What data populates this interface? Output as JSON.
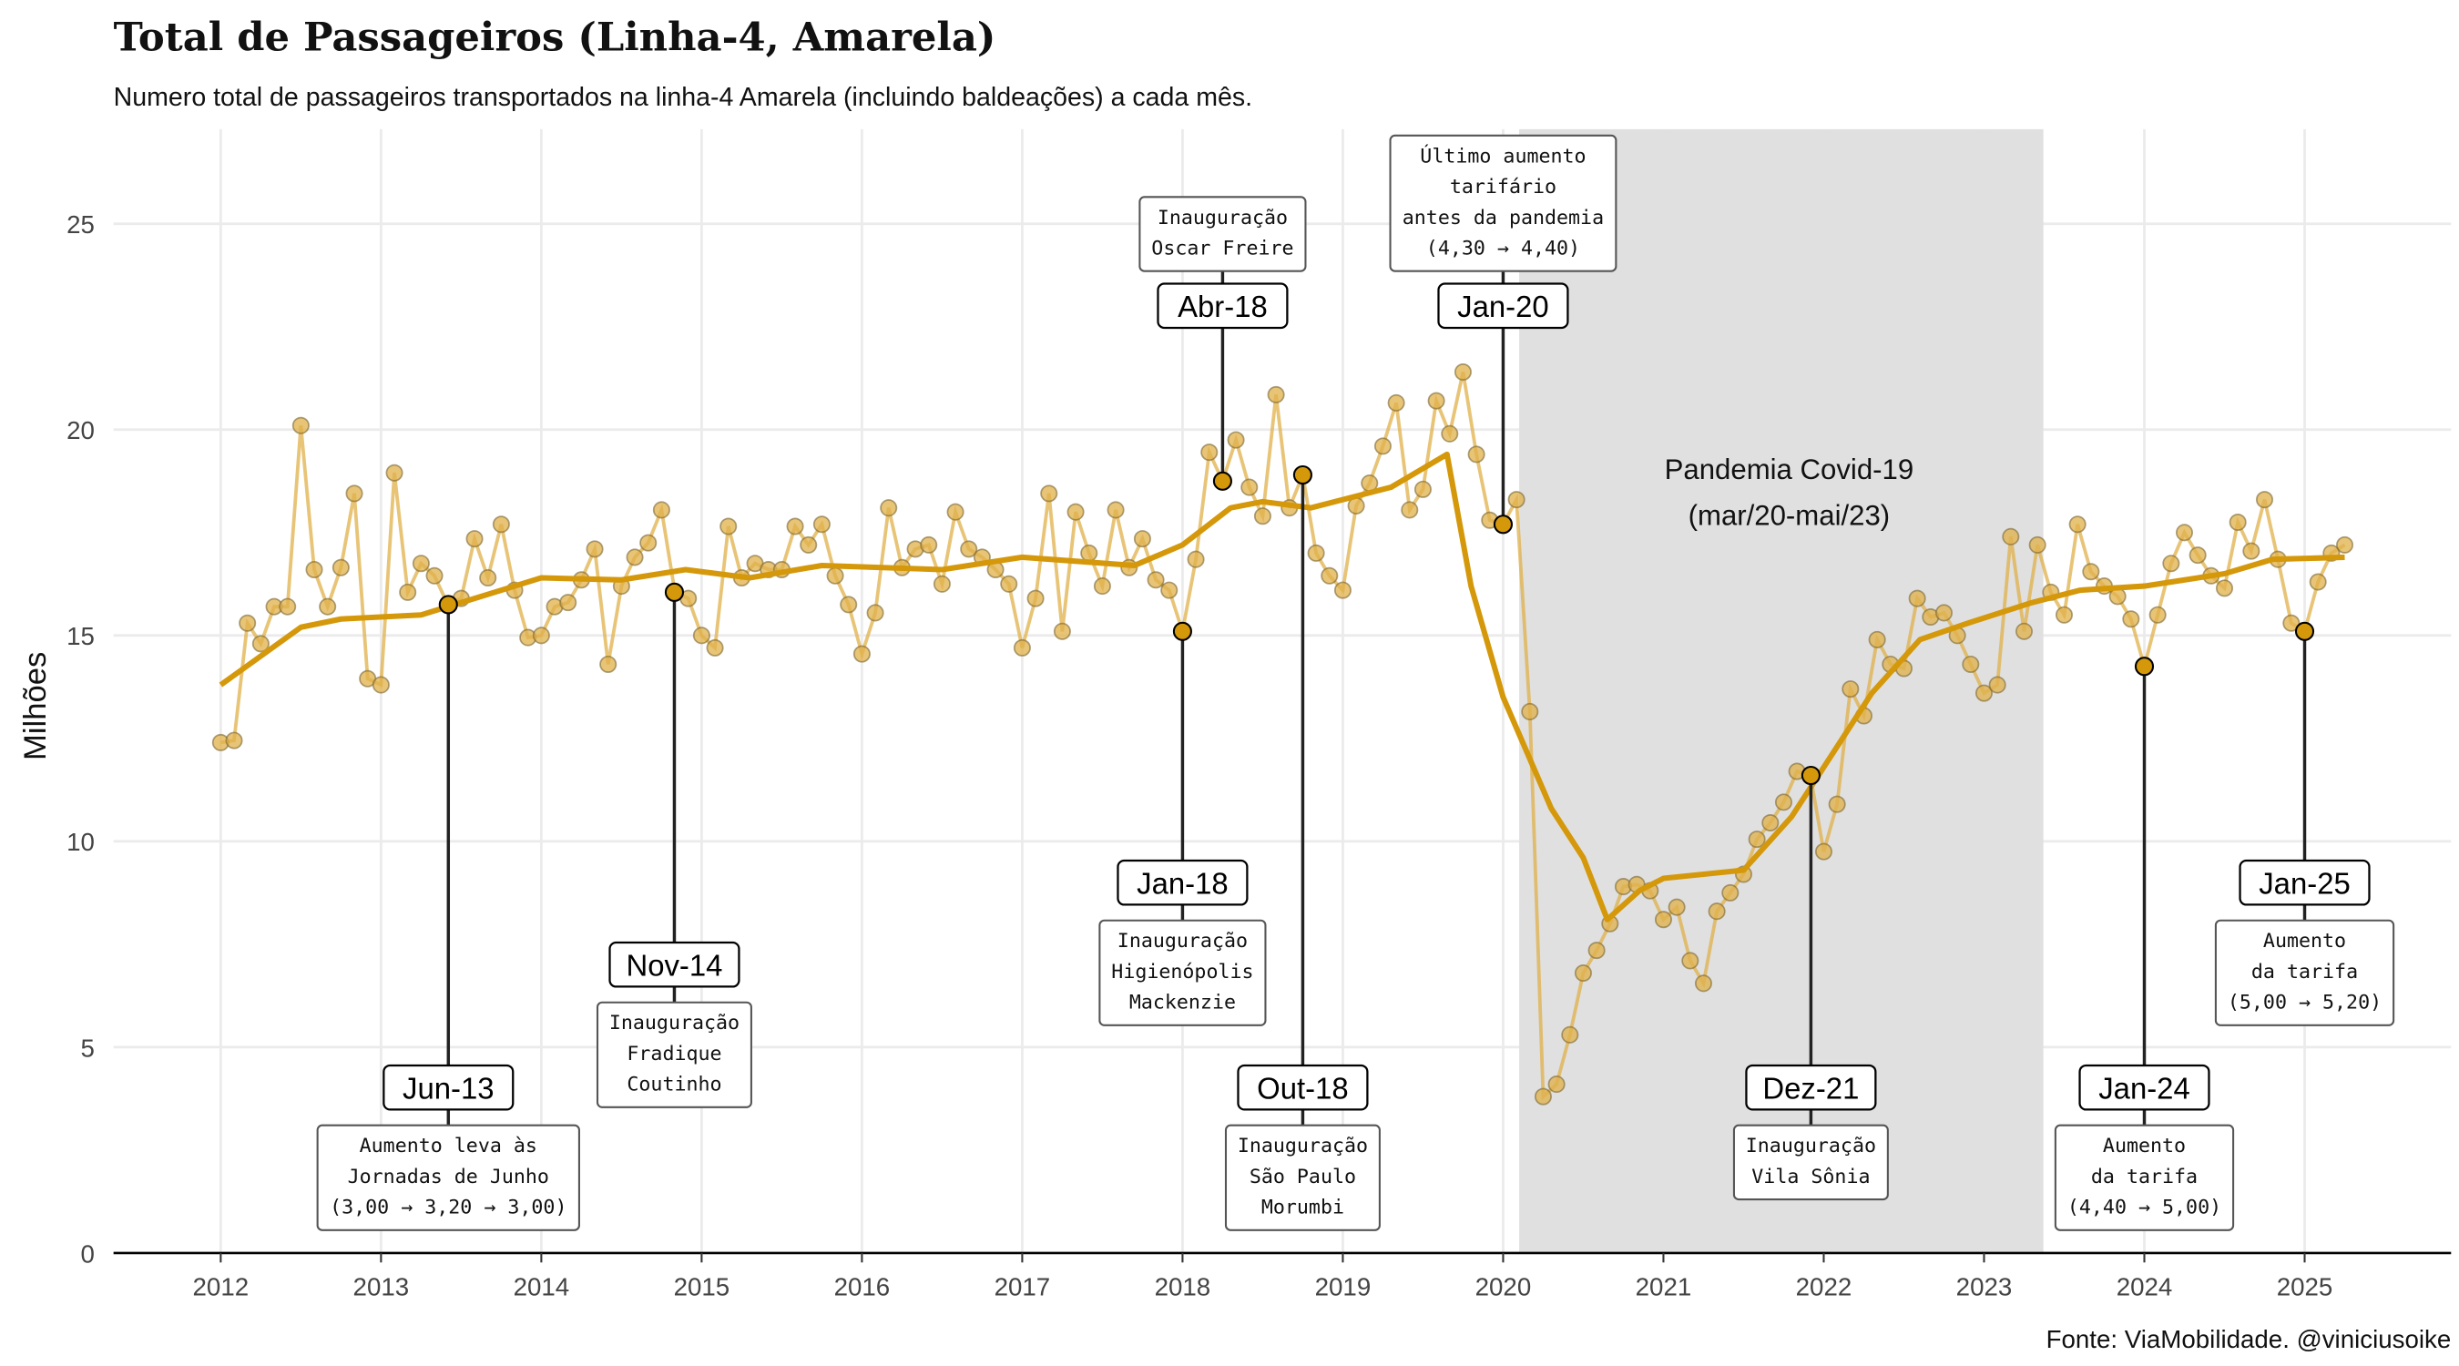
{
  "title": "Total de Passageiros (Linha-4, Amarela)",
  "subtitle": "Numero total de passageiros transportados na linha-4 Amarela (incluindo baldeações) a cada mês.",
  "caption": "Fonte: ViaMobilidade. @viniciusoike",
  "colors": {
    "point": "#E0B04A",
    "line": "#D4980A",
    "highlight": "#D4980A",
    "shade": "#E0E0E0",
    "grid": "#EBEBEB"
  },
  "chart_data": {
    "type": "line",
    "title": "Total de Passageiros (Linha-4, Amarela)",
    "xlabel": "",
    "ylabel": "Milhões",
    "xlim": [
      2011.35,
      2025.9
    ],
    "ylim": [
      0,
      27
    ],
    "x_ticks": [
      2012,
      2013,
      2014,
      2015,
      2016,
      2017,
      2018,
      2019,
      2020,
      2021,
      2022,
      2023,
      2024,
      2025
    ],
    "y_ticks": [
      0,
      5,
      10,
      15,
      20,
      25
    ],
    "grid": true,
    "start": "2012-01",
    "monthly_values": [
      12.4,
      12.45,
      15.3,
      14.8,
      15.7,
      15.7,
      20.1,
      16.6,
      15.7,
      16.65,
      18.45,
      13.95,
      13.8,
      18.95,
      16.05,
      16.75,
      16.45,
      15.75,
      15.9,
      17.35,
      16.4,
      17.7,
      16.1,
      14.95,
      15.0,
      15.7,
      15.8,
      16.35,
      17.1,
      14.3,
      16.2,
      16.9,
      17.25,
      18.05,
      16.05,
      15.9,
      15.0,
      14.7,
      17.65,
      16.4,
      16.75,
      16.6,
      16.6,
      17.65,
      17.2,
      17.7,
      16.45,
      15.75,
      14.55,
      15.55,
      18.1,
      16.65,
      17.1,
      17.2,
      16.25,
      18.0,
      17.1,
      16.9,
      16.6,
      16.25,
      14.7,
      15.9,
      18.45,
      15.1,
      18.0,
      17.0,
      16.2,
      18.05,
      16.65,
      17.35,
      16.35,
      16.1,
      15.1,
      16.85,
      19.45,
      18.75,
      19.75,
      18.6,
      17.9,
      20.85,
      18.1,
      18.9,
      17.0,
      16.45,
      16.1,
      18.15,
      18.7,
      19.6,
      20.65,
      18.05,
      18.55,
      20.7,
      19.9,
      21.4,
      19.4,
      17.8,
      17.7,
      18.3,
      13.15,
      3.8,
      4.1,
      5.3,
      6.8,
      7.35,
      8.0,
      8.9,
      8.95,
      8.8,
      8.1,
      8.4,
      7.1,
      6.55,
      8.3,
      8.75,
      9.2,
      10.05,
      10.45,
      10.95,
      11.7,
      11.6,
      9.75,
      10.9,
      13.7,
      13.05,
      14.9,
      14.3,
      14.2,
      15.9,
      15.45,
      15.55,
      15.0,
      14.3,
      13.6,
      13.8,
      17.4,
      15.1,
      17.2,
      16.05,
      15.5,
      17.7,
      16.55,
      16.2,
      15.95,
      15.4,
      14.25,
      15.5,
      16.75,
      17.5,
      16.95,
      16.45,
      16.15,
      17.75,
      17.05,
      18.3,
      16.85,
      15.3,
      15.1,
      16.3,
      17.0,
      17.2
    ],
    "trend": [
      [
        2012.0,
        13.8
      ],
      [
        2012.5,
        15.2
      ],
      [
        2012.75,
        15.4
      ],
      [
        2013.25,
        15.5
      ],
      [
        2013.75,
        16.1
      ],
      [
        2014.0,
        16.4
      ],
      [
        2014.5,
        16.35
      ],
      [
        2014.9,
        16.6
      ],
      [
        2015.3,
        16.4
      ],
      [
        2015.75,
        16.7
      ],
      [
        2016.5,
        16.6
      ],
      [
        2017.0,
        16.9
      ],
      [
        2017.7,
        16.7
      ],
      [
        2018.0,
        17.2
      ],
      [
        2018.3,
        18.1
      ],
      [
        2018.5,
        18.25
      ],
      [
        2018.8,
        18.1
      ],
      [
        2019.3,
        18.6
      ],
      [
        2019.65,
        19.4
      ],
      [
        2019.8,
        16.2
      ],
      [
        2020.0,
        13.5
      ],
      [
        2020.3,
        10.8
      ],
      [
        2020.5,
        9.6
      ],
      [
        2020.65,
        8.1
      ],
      [
        2020.85,
        8.8
      ],
      [
        2021.0,
        9.1
      ],
      [
        2021.5,
        9.3
      ],
      [
        2021.8,
        10.6
      ],
      [
        2022.0,
        11.8
      ],
      [
        2022.3,
        13.6
      ],
      [
        2022.6,
        14.9
      ],
      [
        2022.9,
        15.3
      ],
      [
        2023.3,
        15.8
      ],
      [
        2023.6,
        16.1
      ],
      [
        2024.0,
        16.2
      ],
      [
        2024.5,
        16.5
      ],
      [
        2024.8,
        16.85
      ],
      [
        2025.25,
        16.9
      ]
    ],
    "shaded_period": {
      "from": 2020.12,
      "to": 2023.37,
      "label_lines": [
        "Pandemia Covid-19",
        "(mar/20-mai/23)"
      ]
    },
    "events": [
      {
        "label": "Jun-13",
        "x": 2013.42,
        "value": 15.75,
        "note": [
          "Aumento leva às",
          "Jornadas de Junho",
          "(3,00 → 3,20 → 3,00)"
        ]
      },
      {
        "label": "Nov-14",
        "x": 2014.83,
        "value": 16.05,
        "note": [
          "Inauguração",
          "Fradique",
          "Coutinho"
        ]
      },
      {
        "label": "Jan-18",
        "x": 2018.0,
        "value": 15.1,
        "note": [
          "Inauguração",
          "Higienópolis",
          "Mackenzie"
        ]
      },
      {
        "label": "Abr-18",
        "x": 2018.25,
        "value": 18.75,
        "note": [
          "Inauguração",
          "Oscar Freire"
        ]
      },
      {
        "label": "Out-18",
        "x": 2018.75,
        "value": 18.9,
        "note": [
          "Inauguração",
          "São Paulo",
          "Morumbi"
        ]
      },
      {
        "label": "Jan-20",
        "x": 2020.0,
        "value": 17.7,
        "note": [
          "Último aumento",
          "tarifário",
          "antes da pandemia",
          "(4,30 → 4,40)"
        ]
      },
      {
        "label": "Dez-21",
        "x": 2021.92,
        "value": 11.6,
        "note": [
          "Inauguração",
          "Vila Sônia"
        ]
      },
      {
        "label": "Jan-24",
        "x": 2024.0,
        "value": 14.25,
        "note": [
          "Aumento",
          "da tarifa",
          "(4,40 → 5,00)"
        ]
      },
      {
        "label": "Jan-25",
        "x": 2025.0,
        "value": 15.1,
        "note": [
          "Aumento",
          "da tarifa",
          "(5,00 → 5,20)"
        ]
      }
    ]
  }
}
